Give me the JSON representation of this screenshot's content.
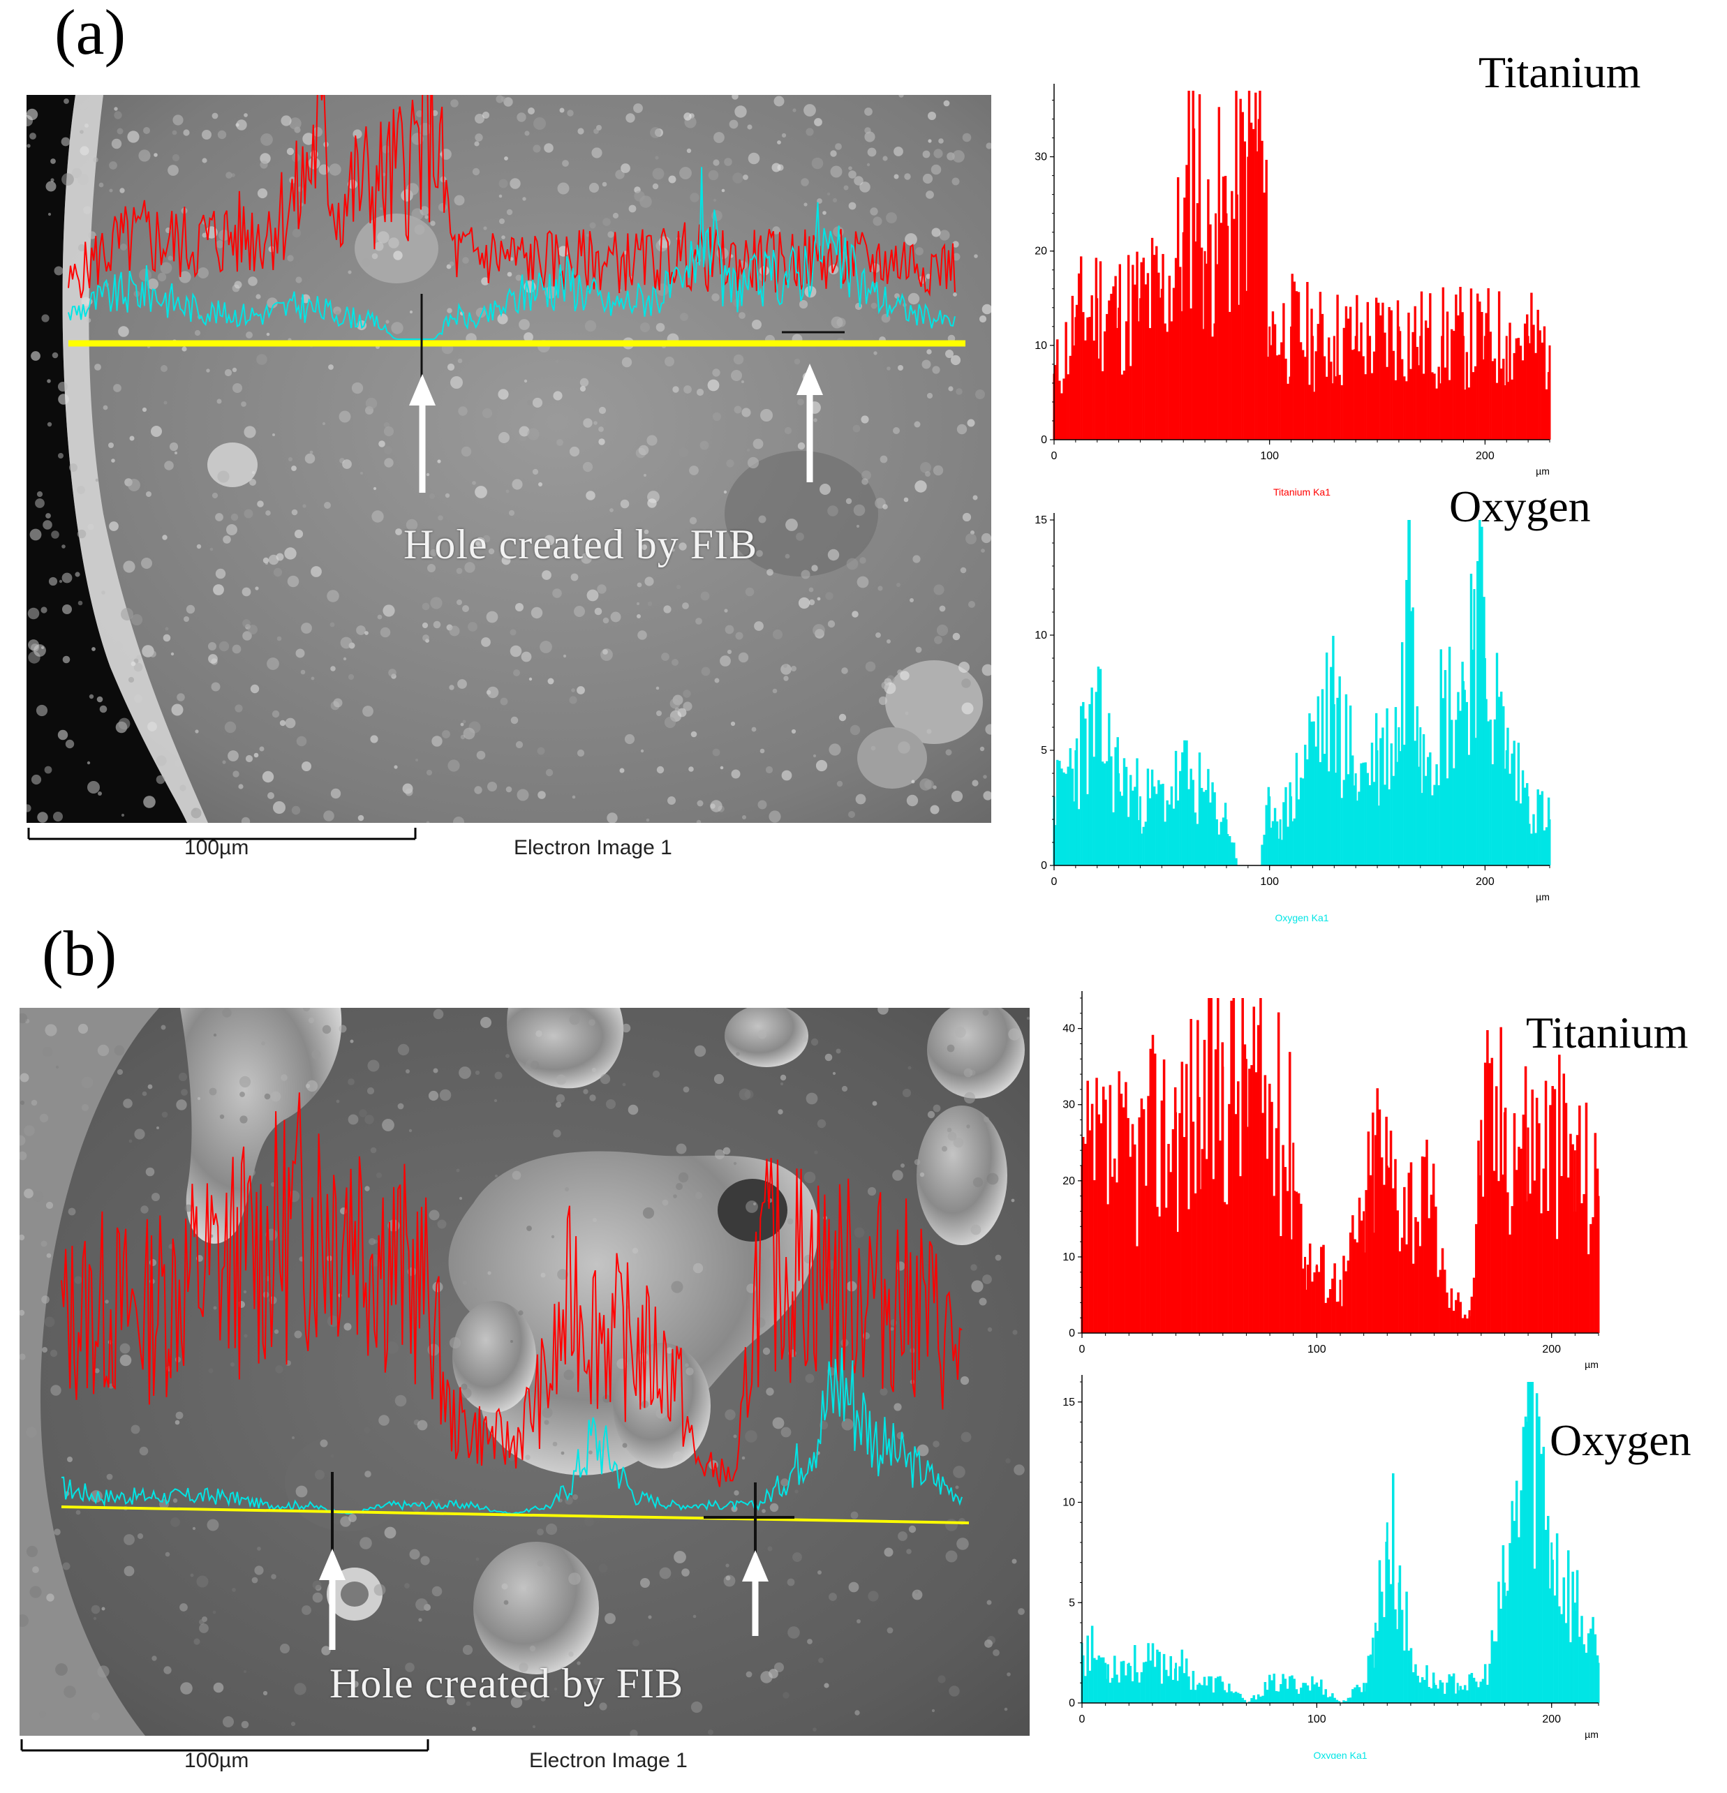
{
  "panel_a": {
    "label": "(a)",
    "sem": {
      "scale_label": "100µm",
      "image_caption": "Electron Image 1",
      "annotation": "Hole created by FIB"
    },
    "titanium": {
      "title": "Titanium"
    },
    "oxygen": {
      "title": "Oxygen"
    }
  },
  "panel_b": {
    "label": "(b)",
    "sem": {
      "scale_label": "100µm",
      "image_caption": "Electron Image 1",
      "annotation": "Hole created by FIB"
    },
    "titanium": {
      "title": "Titanium"
    },
    "oxygen": {
      "title": "Oxygen"
    }
  },
  "colors": {
    "titanium": "#ff0000",
    "oxygen": "#00e5e5",
    "scan_line": "#ffff00",
    "sem_background": "#8a8a8a"
  },
  "chart_data": [
    {
      "id": "a-ti",
      "type": "bar",
      "xlabel": "Titanium Ka1",
      "x_unit": "µm",
      "ylabel": "",
      "xlim": [
        0,
        230
      ],
      "ylim": [
        0,
        37
      ],
      "x_ticks": [
        0,
        100,
        200
      ],
      "y_ticks": [
        0,
        10,
        20,
        30
      ],
      "series": [
        {
          "name": "Titanium Ka1",
          "x": [
            0,
            10,
            20,
            30,
            40,
            50,
            60,
            65,
            70,
            75,
            80,
            85,
            90,
            95,
            100,
            110,
            120,
            130,
            140,
            150,
            160,
            170,
            180,
            190,
            200,
            210,
            220,
            230
          ],
          "values": [
            7,
            13,
            15,
            14,
            15,
            16,
            22,
            33,
            20,
            24,
            24,
            26,
            30,
            34,
            12,
            12,
            11,
            11,
            11,
            11,
            12,
            11,
            11,
            11,
            11,
            11,
            11,
            10
          ]
        }
      ]
    },
    {
      "id": "a-o",
      "type": "bar",
      "xlabel": "Oxygen Ka1",
      "x_unit": "µm",
      "ylabel": "",
      "xlim": [
        0,
        230
      ],
      "ylim": [
        0,
        15
      ],
      "x_ticks": [
        0,
        100,
        200
      ],
      "y_ticks": [
        0,
        5,
        10,
        15
      ],
      "series": [
        {
          "name": "Oxygen Ka1",
          "x": [
            0,
            10,
            20,
            30,
            40,
            50,
            60,
            70,
            80,
            85,
            90,
            95,
            100,
            105,
            110,
            120,
            130,
            140,
            150,
            160,
            165,
            170,
            180,
            190,
            195,
            200,
            210,
            220,
            230
          ],
          "values": [
            3,
            5,
            6,
            4,
            3,
            3,
            4,
            3,
            2,
            0,
            0,
            0,
            3,
            2,
            3,
            6,
            7,
            4,
            5,
            6,
            15,
            6,
            7,
            8,
            12,
            9,
            5,
            3,
            2
          ]
        }
      ]
    },
    {
      "id": "b-ti",
      "type": "bar",
      "xlabel": "Titanium Ka1",
      "x_unit": "µm",
      "ylabel": "",
      "xlim": [
        0,
        220
      ],
      "ylim": [
        0,
        44
      ],
      "x_ticks": [
        0,
        100,
        200
      ],
      "y_ticks": [
        0,
        10,
        20,
        30,
        40
      ],
      "series": [
        {
          "name": "Titanium Ka1",
          "x": [
            0,
            10,
            20,
            30,
            40,
            50,
            60,
            70,
            80,
            90,
            95,
            100,
            110,
            120,
            125,
            130,
            140,
            150,
            155,
            160,
            165,
            170,
            180,
            190,
            200,
            210,
            220
          ],
          "values": [
            22,
            24,
            23,
            27,
            29,
            31,
            35,
            36,
            30,
            25,
            10,
            9,
            7,
            16,
            26,
            22,
            19,
            16,
            5,
            4,
            3,
            28,
            29,
            27,
            26,
            24,
            18
          ]
        }
      ]
    },
    {
      "id": "b-o",
      "type": "bar",
      "xlabel": "Oxygen Ka1",
      "x_unit": "µm",
      "ylabel": "",
      "xlim": [
        0,
        220
      ],
      "ylim": [
        0,
        16
      ],
      "x_ticks": [
        0,
        100,
        200
      ],
      "y_ticks": [
        0,
        5,
        10,
        15
      ],
      "series": [
        {
          "name": "Oxygen Ka1",
          "x": [
            0,
            10,
            20,
            30,
            40,
            50,
            60,
            70,
            80,
            90,
            100,
            110,
            120,
            125,
            130,
            135,
            140,
            150,
            160,
            170,
            175,
            180,
            185,
            190,
            195,
            200,
            210,
            220
          ],
          "values": [
            3,
            2,
            2,
            2,
            2,
            1,
            1,
            0,
            1,
            1,
            1,
            0,
            1,
            4,
            9,
            6,
            2,
            1,
            1,
            1,
            3,
            6,
            10,
            16,
            12,
            8,
            5,
            2
          ]
        }
      ]
    }
  ]
}
